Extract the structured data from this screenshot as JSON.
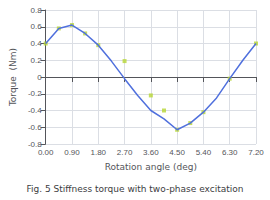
{
  "chart_data": {
    "type": "line",
    "title": "Fig. 5 Stiffness torque with two-phase excitation",
    "x_label": "Rotation angle (deg)",
    "y_label": "Torque  (Nm)",
    "series": [
      {
        "type": "line",
        "x": [
          0.0,
          0.45,
          0.9,
          1.35,
          1.8,
          2.25,
          2.7,
          3.15,
          3.6,
          4.05,
          4.5,
          4.95,
          5.4,
          5.85,
          6.3,
          6.75,
          7.2
        ],
        "values": [
          0.4,
          0.58,
          0.62,
          0.52,
          0.38,
          0.19,
          -0.02,
          -0.22,
          -0.4,
          -0.5,
          -0.63,
          -0.55,
          -0.42,
          -0.25,
          -0.02,
          0.2,
          0.4
        ]
      },
      {
        "type": "scatter",
        "marker": "square",
        "x": [
          0.0,
          0.45,
          0.9,
          1.35,
          1.8,
          2.7,
          3.6,
          4.05,
          4.5,
          4.95,
          5.4,
          6.3,
          7.2
        ],
        "values": [
          0.4,
          0.58,
          0.62,
          0.52,
          0.38,
          0.19,
          -0.22,
          -0.4,
          -0.63,
          -0.55,
          -0.42,
          -0.02,
          0.4
        ]
      }
    ],
    "xlim": [
      0.0,
      7.2
    ],
    "xticks": [
      {
        "value": 0.0,
        "label": "0.00"
      },
      {
        "value": 0.9,
        "label": "0.90"
      },
      {
        "value": 1.8,
        "label": "1.80"
      },
      {
        "value": 2.7,
        "label": "2.70"
      },
      {
        "value": 3.6,
        "label": "3.60"
      },
      {
        "value": 4.5,
        "label": "4.50"
      },
      {
        "value": 5.4,
        "label": "5.40"
      },
      {
        "value": 6.3,
        "label": "6.30"
      },
      {
        "value": 7.2,
        "label": "7.20"
      }
    ],
    "ylim": [
      -0.8,
      0.8
    ],
    "yticks": [
      -0.8,
      -0.6,
      -0.4,
      -0.2,
      0,
      0.2,
      0.4,
      0.6,
      0.8
    ],
    "grid": true
  }
}
